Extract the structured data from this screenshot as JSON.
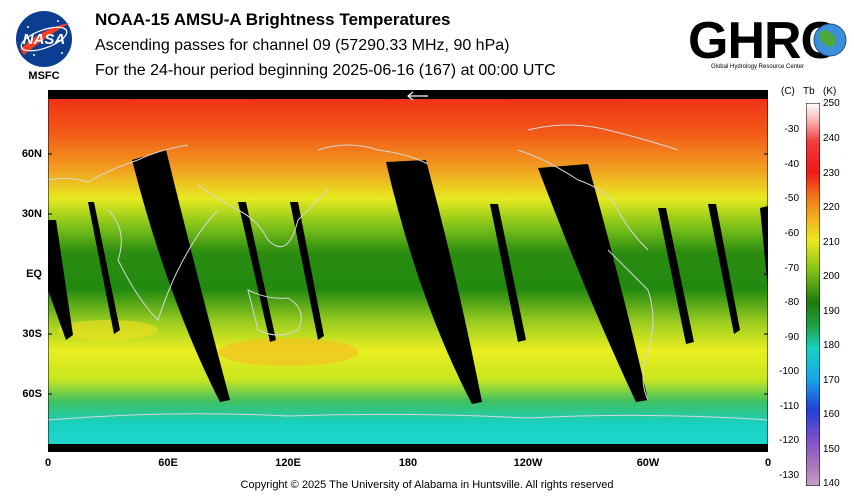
{
  "header": {
    "title": "NOAA-15 AMSU-A Brightness Temperatures",
    "subtitle1": "Ascending passes for channel 09 (57290.33 MHz, 90 hPa)",
    "subtitle2": "For the 24-hour period beginning 2025-06-16 (167) at 00:00 UTC"
  },
  "logos": {
    "nasa_wordmark": "NASA",
    "nasa_label": "MSFC",
    "ghrc_wordmark": "GHRC",
    "ghrc_subtitle": "Global Hydrology Resource Center"
  },
  "map": {
    "lat_labels": [
      "60N",
      "30N",
      "EQ",
      "30S",
      "60S"
    ],
    "lon_labels": [
      "0",
      "60E",
      "120E",
      "180",
      "120W",
      "60W",
      "0"
    ],
    "colors": {
      "polar_north": "#f03020",
      "mid": "#e8f020",
      "tropics": "#2a8a10",
      "south_ocean": "#18d0c8",
      "swath": "#000000"
    }
  },
  "colorbar": {
    "header_c": "(C)",
    "header_tb": "Tb",
    "header_k": "(K)",
    "celsius_ticks": [
      "-30",
      "-40",
      "-50",
      "-60",
      "-70",
      "-80",
      "-90",
      "-100",
      "-110",
      "-120",
      "-130"
    ],
    "kelvin_ticks": [
      "250",
      "240",
      "230",
      "220",
      "210",
      "200",
      "190",
      "180",
      "170",
      "160",
      "150",
      "140"
    ],
    "range_k": [
      140,
      250
    ]
  },
  "footer": {
    "copyright": "Copyright © 2025 The University of Alabama in Huntsville.  All rights reserved"
  }
}
